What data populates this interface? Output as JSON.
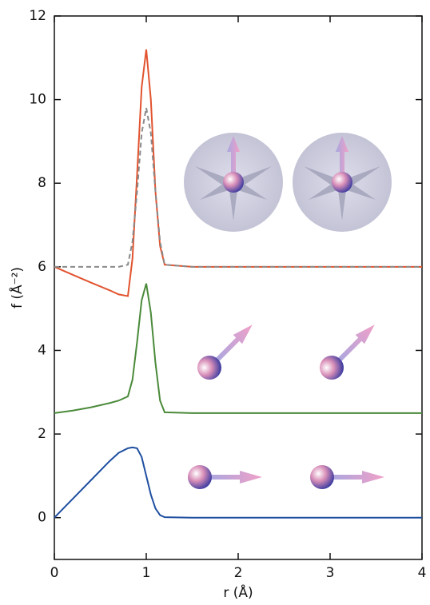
{
  "chart_data": {
    "type": "line",
    "xlabel": "r (Å)",
    "ylabel": "f (Å⁻²)",
    "x": [
      0,
      0.2,
      0.4,
      0.6,
      0.7,
      0.8,
      0.85,
      0.9,
      0.95,
      1.0,
      1.05,
      1.1,
      1.15,
      1.2,
      1.5,
      2,
      3,
      4
    ],
    "series": [
      {
        "color": "#e2532f",
        "style": "solid",
        "values": [
          6,
          5.81,
          5.62,
          5.44,
          5.34,
          5.3,
          6.2,
          8.2,
          10.3,
          11.2,
          10.0,
          7.8,
          6.5,
          6.05,
          6,
          6,
          6,
          6
        ]
      },
      {
        "color": "#8a8a8a",
        "style": "dashed",
        "values": [
          6,
          6,
          6,
          6,
          6,
          6.05,
          6.6,
          7.8,
          9.2,
          9.8,
          9.2,
          7.8,
          6.6,
          6.05,
          6,
          6,
          6,
          6
        ]
      },
      {
        "color": "#4a8a3a",
        "style": "solid",
        "values": [
          2.5,
          2.56,
          2.64,
          2.74,
          2.8,
          2.9,
          3.3,
          4.2,
          5.2,
          5.6,
          4.9,
          3.7,
          2.8,
          2.52,
          2.5,
          2.5,
          2.5,
          2.5
        ]
      },
      {
        "color": "#1f4fa0",
        "style": "solid",
        "values": [
          0,
          0.45,
          0.9,
          1.35,
          1.55,
          1.66,
          1.68,
          1.66,
          1.45,
          1.0,
          0.55,
          0.22,
          0.06,
          0.01,
          0,
          0,
          0,
          0
        ]
      }
    ],
    "xlim": [
      0,
      4
    ],
    "xticks": [
      0,
      1,
      2,
      3,
      4
    ],
    "ylim": [
      -1,
      12
    ],
    "yticks": [
      0,
      2,
      4,
      6,
      8,
      10,
      12
    ]
  }
}
